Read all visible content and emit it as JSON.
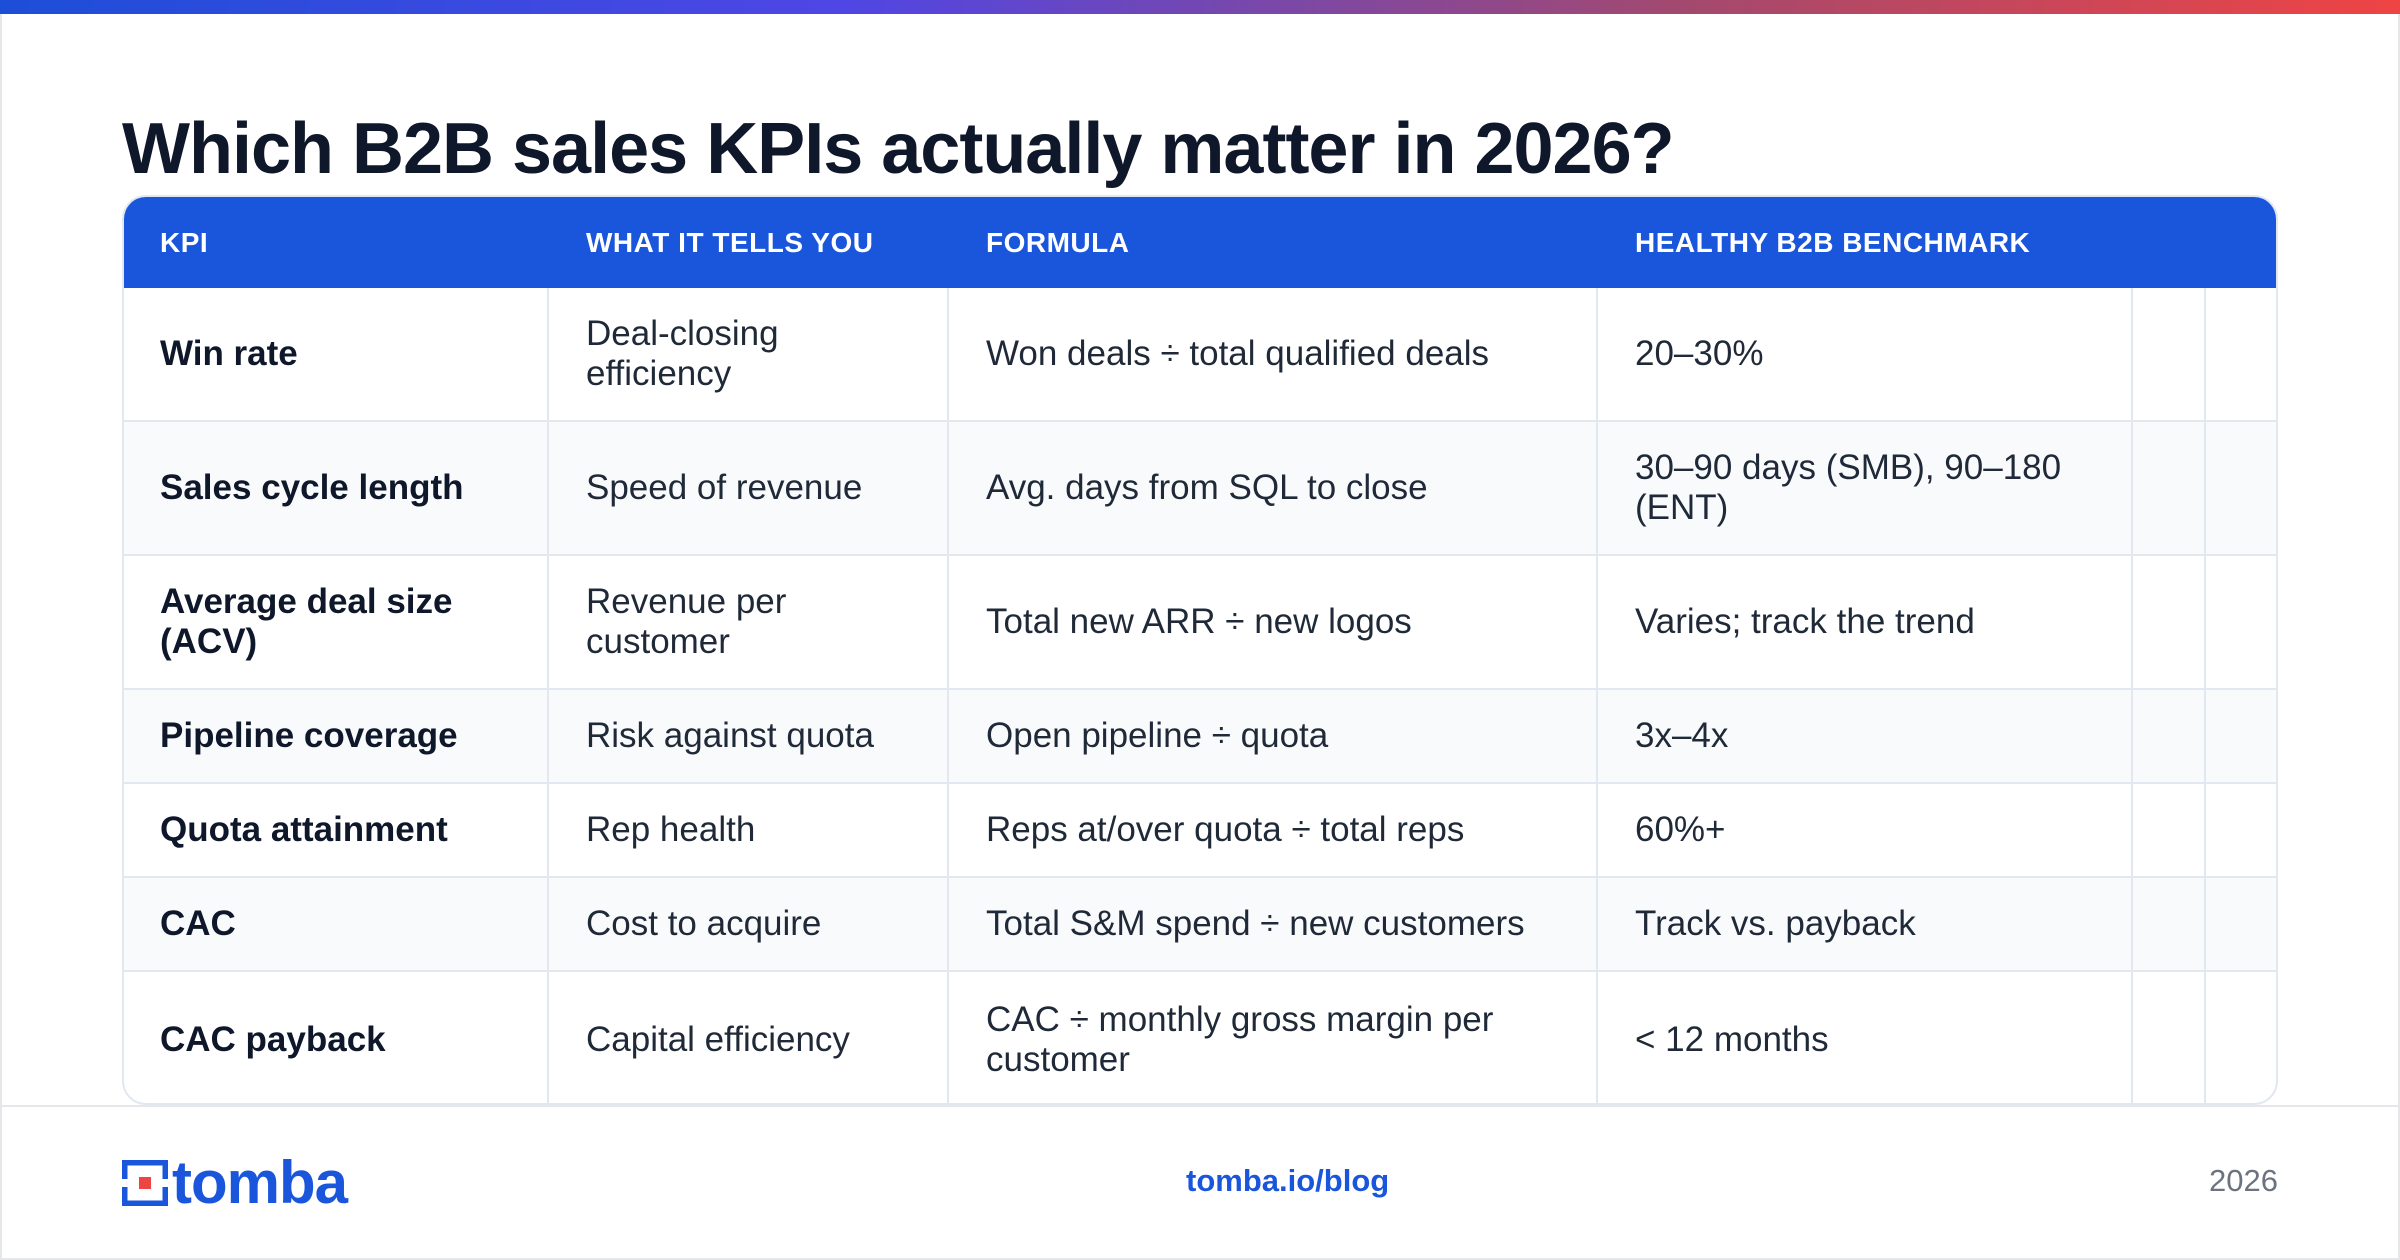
{
  "title": "Which B2B sales KPIs actually matter in 2026?",
  "table": {
    "headers": [
      "KPI",
      "WHAT IT TELLS YOU",
      "FORMULA",
      "HEALTHY B2B BENCHMARK"
    ],
    "rows": [
      {
        "kpi": "Win rate",
        "tells": "Deal-closing efficiency",
        "formula": "Won deals ÷ total qualified deals",
        "benchmark": "20–30%"
      },
      {
        "kpi": "Sales cycle length",
        "tells": "Speed of revenue",
        "formula": "Avg. days from SQL to close",
        "benchmark": "30–90 days (SMB), 90–180 (ENT)"
      },
      {
        "kpi": "Average deal size (ACV)",
        "tells": "Revenue per customer",
        "formula": "Total new ARR ÷ new logos",
        "benchmark": "Varies; track the trend"
      },
      {
        "kpi": "Pipeline coverage",
        "tells": "Risk against quota",
        "formula": "Open pipeline ÷ quota",
        "benchmark": "3x–4x"
      },
      {
        "kpi": "Quota attainment",
        "tells": "Rep health",
        "formula": "Reps at/over quota ÷ total reps",
        "benchmark": "60%+"
      },
      {
        "kpi": "CAC",
        "tells": "Cost to acquire",
        "formula": "Total S&M spend ÷ new customers",
        "benchmark": "Track vs. payback"
      },
      {
        "kpi": "CAC payback",
        "tells": "Capital efficiency",
        "formula": "CAC ÷ monthly gross margin per customer",
        "benchmark": "< 12 months"
      }
    ]
  },
  "footer": {
    "logo_text": "tomba",
    "link": "tomba.io/blog",
    "year": "2026"
  },
  "colors": {
    "accent": "#1a56db",
    "logo_red": "#ef4444",
    "header_bg": "#1a56db"
  }
}
